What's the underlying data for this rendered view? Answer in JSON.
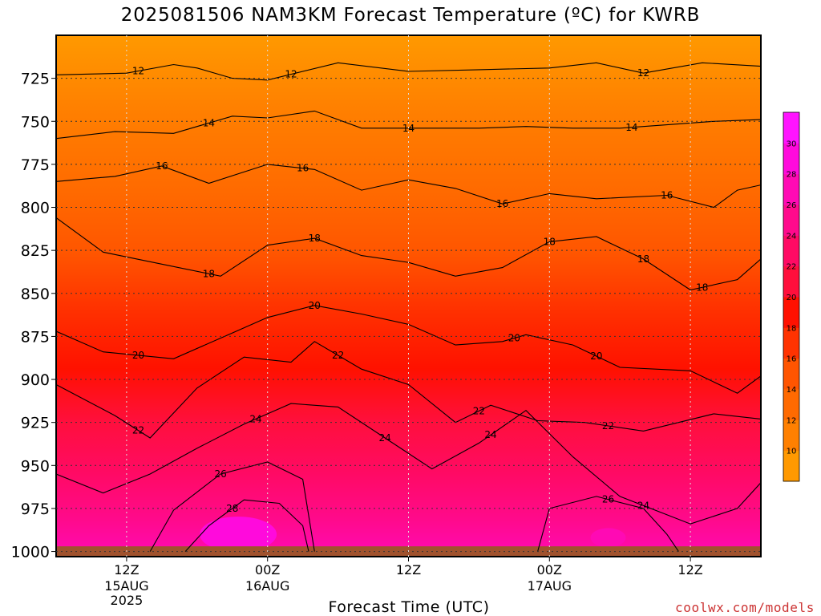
{
  "chart_data": {
    "type": "heatmap",
    "title": "2025081506 NAM3KM Forecast Temperature (ºC) for KWRB",
    "xlabel": "Forecast Time (UTC)",
    "ylabel": "",
    "credit": "coolwx.com/models",
    "y_axis": {
      "ticks": [
        725,
        750,
        775,
        800,
        825,
        850,
        875,
        900,
        925,
        950,
        975,
        1000
      ],
      "tick_labels": [
        "725",
        "750",
        "775",
        "800",
        "825",
        "850",
        "875",
        "900",
        "925",
        "950",
        "975",
        "1000"
      ],
      "inverted": true,
      "range": [
        700,
        1003
      ]
    },
    "x_axis": {
      "range": [
        "2025-08-15 06Z",
        "2025-08-17 18Z"
      ],
      "ticks": [
        {
          "label": "12Z",
          "sub1": "15AUG",
          "sub2": "2025",
          "hour": 6
        },
        {
          "label": "00Z",
          "sub1": "16AUG",
          "sub2": "",
          "hour": 18
        },
        {
          "label": "12Z",
          "sub1": "",
          "sub2": "",
          "hour": 30
        },
        {
          "label": "00Z",
          "sub1": "17AUG",
          "sub2": "",
          "hour": 42
        },
        {
          "label": "12Z",
          "sub1": "",
          "sub2": "",
          "hour": 54
        }
      ],
      "total_hours": 60
    },
    "grid": true,
    "colorbar": {
      "levels": [
        10,
        12,
        14,
        16,
        18,
        20,
        22,
        24,
        26,
        28,
        30
      ],
      "colors": [
        "#ff9900",
        "#ff8000",
        "#ff6a00",
        "#ff5500",
        "#ff3300",
        "#ff1100",
        "#ff0f3c",
        "#ff0a64",
        "#ff0a8c",
        "#ff0ab4",
        "#ff0adc",
        "#ff14ff"
      ]
    },
    "contours": [
      {
        "value": 12,
        "series_pressure": [
          {
            "h": 0,
            "p": 723
          },
          {
            "h": 6,
            "p": 722
          },
          {
            "h": 10,
            "p": 717
          },
          {
            "h": 12,
            "p": 719
          },
          {
            "h": 15,
            "p": 725
          },
          {
            "h": 18,
            "p": 726
          },
          {
            "h": 24,
            "p": 716
          },
          {
            "h": 30,
            "p": 721
          },
          {
            "h": 36,
            "p": 720
          },
          {
            "h": 42,
            "p": 719
          },
          {
            "h": 46,
            "p": 716
          },
          {
            "h": 50,
            "p": 722
          },
          {
            "h": 55,
            "p": 716
          },
          {
            "h": 60,
            "p": 718
          }
        ],
        "labels": [
          {
            "h": 7,
            "text": "12"
          },
          {
            "h": 20,
            "text": "12"
          },
          {
            "h": 50,
            "text": "12"
          }
        ]
      },
      {
        "value": 14,
        "series_pressure": [
          {
            "h": 0,
            "p": 760
          },
          {
            "h": 5,
            "p": 756
          },
          {
            "h": 10,
            "p": 757
          },
          {
            "h": 15,
            "p": 747
          },
          {
            "h": 18,
            "p": 748
          },
          {
            "h": 22,
            "p": 744
          },
          {
            "h": 26,
            "p": 754
          },
          {
            "h": 30,
            "p": 754
          },
          {
            "h": 36,
            "p": 754
          },
          {
            "h": 40,
            "p": 753
          },
          {
            "h": 44,
            "p": 754
          },
          {
            "h": 48,
            "p": 754
          },
          {
            "h": 52,
            "p": 752
          },
          {
            "h": 56,
            "p": 750
          },
          {
            "h": 60,
            "p": 749
          }
        ],
        "labels": [
          {
            "h": 13,
            "text": "14"
          },
          {
            "h": 30,
            "text": "14"
          },
          {
            "h": 49,
            "text": "14"
          }
        ]
      },
      {
        "value": 16,
        "series_pressure": [
          {
            "h": 0,
            "p": 785
          },
          {
            "h": 5,
            "p": 782
          },
          {
            "h": 9,
            "p": 776
          },
          {
            "h": 13,
            "p": 786
          },
          {
            "h": 18,
            "p": 775
          },
          {
            "h": 22,
            "p": 778
          },
          {
            "h": 26,
            "p": 790
          },
          {
            "h": 30,
            "p": 784
          },
          {
            "h": 34,
            "p": 789
          },
          {
            "h": 38,
            "p": 798
          },
          {
            "h": 42,
            "p": 792
          },
          {
            "h": 46,
            "p": 795
          },
          {
            "h": 52,
            "p": 793
          },
          {
            "h": 56,
            "p": 800
          },
          {
            "h": 58,
            "p": 790
          },
          {
            "h": 60,
            "p": 787
          }
        ],
        "labels": [
          {
            "h": 9,
            "text": "16"
          },
          {
            "h": 21,
            "text": "16"
          },
          {
            "h": 38,
            "text": "16"
          },
          {
            "h": 52,
            "text": "16"
          }
        ]
      },
      {
        "value": 18,
        "series_pressure": [
          {
            "h": 0,
            "p": 806
          },
          {
            "h": 4,
            "p": 826
          },
          {
            "h": 9,
            "p": 833
          },
          {
            "h": 14,
            "p": 840
          },
          {
            "h": 18,
            "p": 822
          },
          {
            "h": 22,
            "p": 818
          },
          {
            "h": 26,
            "p": 828
          },
          {
            "h": 30,
            "p": 832
          },
          {
            "h": 34,
            "p": 840
          },
          {
            "h": 38,
            "p": 835
          },
          {
            "h": 42,
            "p": 820
          },
          {
            "h": 46,
            "p": 817
          },
          {
            "h": 50,
            "p": 830
          },
          {
            "h": 54,
            "p": 848
          },
          {
            "h": 58,
            "p": 842
          },
          {
            "h": 60,
            "p": 830
          }
        ],
        "labels": [
          {
            "h": 13,
            "text": "18"
          },
          {
            "h": 22,
            "text": "18"
          },
          {
            "h": 42,
            "text": "18"
          },
          {
            "h": 50,
            "text": "18"
          },
          {
            "h": 55,
            "text": "18"
          }
        ]
      },
      {
        "value": 20,
        "series_pressure": [
          {
            "h": 0,
            "p": 872
          },
          {
            "h": 4,
            "p": 884
          },
          {
            "h": 10,
            "p": 888
          },
          {
            "h": 15,
            "p": 873
          },
          {
            "h": 18,
            "p": 864
          },
          {
            "h": 22,
            "p": 857
          },
          {
            "h": 26,
            "p": 862
          },
          {
            "h": 30,
            "p": 868
          },
          {
            "h": 34,
            "p": 880
          },
          {
            "h": 38,
            "p": 878
          },
          {
            "h": 40,
            "p": 874
          },
          {
            "h": 44,
            "p": 880
          },
          {
            "h": 48,
            "p": 893
          },
          {
            "h": 54,
            "p": 895
          },
          {
            "h": 58,
            "p": 908
          },
          {
            "h": 60,
            "p": 898
          }
        ],
        "labels": [
          {
            "h": 7,
            "text": "20"
          },
          {
            "h": 22,
            "text": "20"
          },
          {
            "h": 39,
            "text": "20"
          },
          {
            "h": 46,
            "text": "20"
          }
        ]
      },
      {
        "value": 22,
        "series_pressure": [
          {
            "h": 0,
            "p": 903
          },
          {
            "h": 5,
            "p": 921
          },
          {
            "h": 8,
            "p": 934
          },
          {
            "h": 12,
            "p": 905
          },
          {
            "h": 16,
            "p": 887
          },
          {
            "h": 20,
            "p": 890
          },
          {
            "h": 22,
            "p": 878
          },
          {
            "h": 26,
            "p": 894
          },
          {
            "h": 30,
            "p": 903
          },
          {
            "h": 34,
            "p": 925
          },
          {
            "h": 37,
            "p": 915
          },
          {
            "h": 41,
            "p": 924
          },
          {
            "h": 45,
            "p": 925
          },
          {
            "h": 50,
            "p": 930
          },
          {
            "h": 56,
            "p": 920
          },
          {
            "h": 60,
            "p": 923
          }
        ],
        "labels": [
          {
            "h": 7,
            "text": "22"
          },
          {
            "h": 24,
            "text": "22"
          },
          {
            "h": 36,
            "text": "22"
          },
          {
            "h": 47,
            "text": "22"
          }
        ]
      },
      {
        "value": 24,
        "series_pressure": [
          {
            "h": 0,
            "p": 955
          },
          {
            "h": 4,
            "p": 966
          },
          {
            "h": 8,
            "p": 955
          },
          {
            "h": 12,
            "p": 940
          },
          {
            "h": 16,
            "p": 926
          },
          {
            "h": 20,
            "p": 914
          },
          {
            "h": 24,
            "p": 916
          },
          {
            "h": 28,
            "p": 934
          },
          {
            "h": 32,
            "p": 952
          },
          {
            "h": 36,
            "p": 937
          },
          {
            "h": 40,
            "p": 918
          },
          {
            "h": 44,
            "p": 945
          },
          {
            "h": 48,
            "p": 968
          },
          {
            "h": 54,
            "p": 984
          },
          {
            "h": 58,
            "p": 975
          },
          {
            "h": 60,
            "p": 960
          }
        ],
        "labels": [
          {
            "h": 17,
            "text": "24"
          },
          {
            "h": 28,
            "text": "24"
          },
          {
            "h": 37,
            "text": "24"
          },
          {
            "h": 50,
            "text": "24"
          }
        ]
      },
      {
        "value": 26,
        "series_pressure": [
          {
            "h": 8,
            "p": 1000
          },
          {
            "h": 10,
            "p": 976
          },
          {
            "h": 14,
            "p": 955
          },
          {
            "h": 18,
            "p": 948
          },
          {
            "h": 21,
            "p": 958
          },
          {
            "h": 22,
            "p": 1000
          }
        ],
        "labels": [
          {
            "h": 14,
            "text": "26"
          }
        ]
      },
      {
        "value": 26,
        "series_pressure": [
          {
            "h": 41,
            "p": 1000
          },
          {
            "h": 42,
            "p": 975
          },
          {
            "h": 46,
            "p": 968
          },
          {
            "h": 50,
            "p": 975
          },
          {
            "h": 52,
            "p": 990
          },
          {
            "h": 53,
            "p": 1000
          }
        ],
        "labels": [
          {
            "h": 47,
            "text": "26"
          }
        ]
      },
      {
        "value": 28,
        "series_pressure": [
          {
            "h": 11,
            "p": 1000
          },
          {
            "h": 13,
            "p": 985
          },
          {
            "h": 16,
            "p": 970
          },
          {
            "h": 19,
            "p": 972
          },
          {
            "h": 21,
            "p": 985
          },
          {
            "h": 21.5,
            "p": 1000
          }
        ],
        "labels": [
          {
            "h": 15,
            "text": "28"
          }
        ]
      }
    ]
  }
}
